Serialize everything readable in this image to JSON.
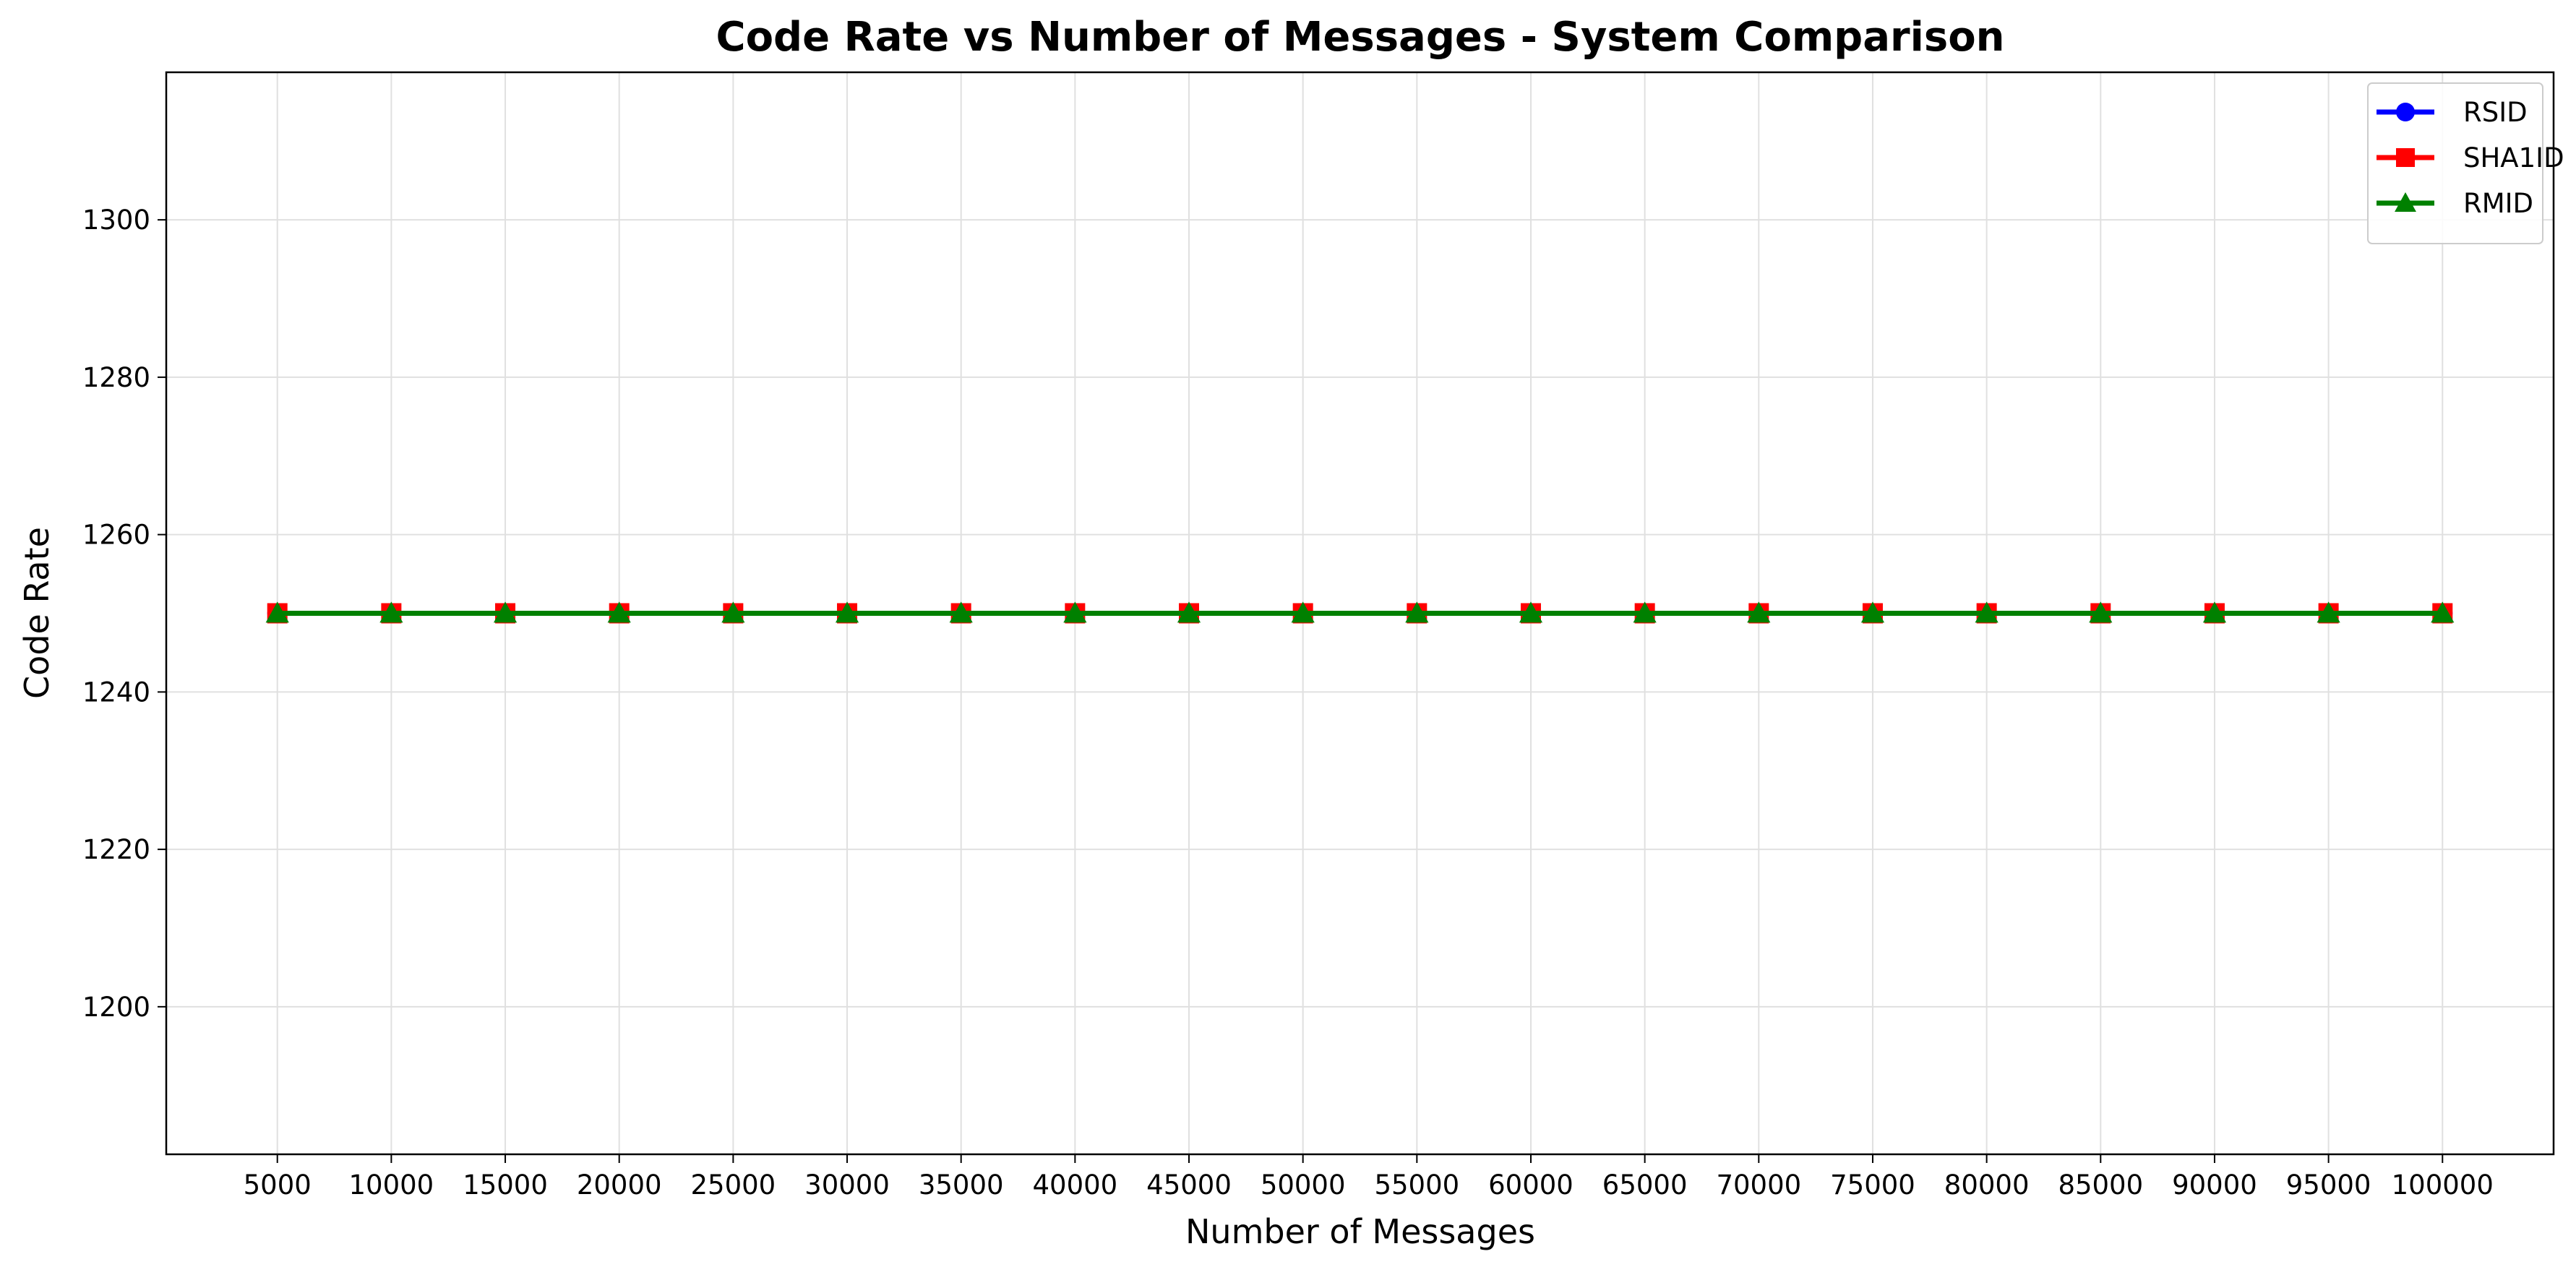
{
  "chart_data": {
    "type": "line",
    "title": "Code Rate vs Number of Messages - System Comparison",
    "xlabel": "Number of Messages",
    "ylabel": "Code Rate",
    "x": [
      5000,
      10000,
      15000,
      20000,
      25000,
      30000,
      35000,
      40000,
      45000,
      50000,
      55000,
      60000,
      65000,
      70000,
      75000,
      80000,
      85000,
      90000,
      95000,
      100000
    ],
    "x_tick_labels": [
      "5000",
      "10000",
      "15000",
      "20000",
      "25000",
      "30000",
      "35000",
      "40000",
      "45000",
      "50000",
      "55000",
      "60000",
      "65000",
      "70000",
      "75000",
      "80000",
      "85000",
      "90000",
      "95000",
      "100000"
    ],
    "xlim": [
      125,
      104875
    ],
    "ylim": [
      1181.25,
      1318.75
    ],
    "y_ticks": [
      1200,
      1220,
      1240,
      1260,
      1280,
      1300
    ],
    "y_tick_labels": [
      "1200",
      "1220",
      "1240",
      "1260",
      "1280",
      "1300"
    ],
    "grid": true,
    "legend_position": "top-right",
    "series": [
      {
        "name": "RSID",
        "color": "#0000ff",
        "marker": "circle",
        "values": [
          1250,
          1250,
          1250,
          1250,
          1250,
          1250,
          1250,
          1250,
          1250,
          1250,
          1250,
          1250,
          1250,
          1250,
          1250,
          1250,
          1250,
          1250,
          1250,
          1250
        ]
      },
      {
        "name": "SHA1ID",
        "color": "#ff0000",
        "marker": "square",
        "values": [
          1250,
          1250,
          1250,
          1250,
          1250,
          1250,
          1250,
          1250,
          1250,
          1250,
          1250,
          1250,
          1250,
          1250,
          1250,
          1250,
          1250,
          1250,
          1250,
          1250
        ]
      },
      {
        "name": "RMID",
        "color": "#008000",
        "marker": "triangle",
        "values": [
          1250,
          1250,
          1250,
          1250,
          1250,
          1250,
          1250,
          1250,
          1250,
          1250,
          1250,
          1250,
          1250,
          1250,
          1250,
          1250,
          1250,
          1250,
          1250,
          1250
        ]
      }
    ]
  }
}
